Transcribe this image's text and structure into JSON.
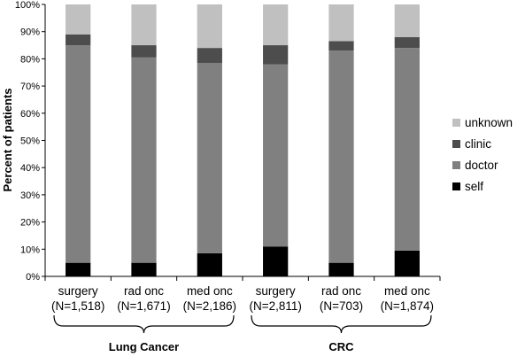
{
  "chart_data": {
    "type": "bar",
    "stacked": true,
    "ylabel": "Percent of patients",
    "ylim": [
      0,
      100
    ],
    "yticks": [
      "0%",
      "10%",
      "20%",
      "30%",
      "40%",
      "50%",
      "60%",
      "70%",
      "80%",
      "90%",
      "100%"
    ],
    "categories": [
      {
        "line1": "surgery",
        "line2": "(N=1,518)"
      },
      {
        "line1": "rad onc",
        "line2": "(N=1,671)"
      },
      {
        "line1": "med onc",
        "line2": "(N=2,186)"
      },
      {
        "line1": "surgery",
        "line2": "(N=2,811)"
      },
      {
        "line1": "rad onc",
        "line2": "(N=703)"
      },
      {
        "line1": "med onc",
        "line2": "(N=1,874)"
      }
    ],
    "groups": [
      {
        "label": "Lung Cancer",
        "categories": [
          0,
          1,
          2
        ]
      },
      {
        "label": "CRC",
        "categories": [
          3,
          4,
          5
        ]
      }
    ],
    "series": [
      {
        "name": "self",
        "color": "#000000",
        "values": [
          5,
          5,
          8.5,
          11,
          5,
          9.5
        ]
      },
      {
        "name": "doctor",
        "color": "#808080",
        "values": [
          80,
          75.5,
          70,
          67,
          78,
          74.5
        ]
      },
      {
        "name": "clinic",
        "color": "#4d4d4d",
        "values": [
          4,
          4.5,
          5.5,
          7,
          3.5,
          4
        ]
      },
      {
        "name": "unknown",
        "color": "#c0c0c0",
        "values": [
          11,
          15,
          16,
          15,
          13.5,
          12
        ]
      }
    ],
    "legend_position": "right",
    "grid": false
  }
}
